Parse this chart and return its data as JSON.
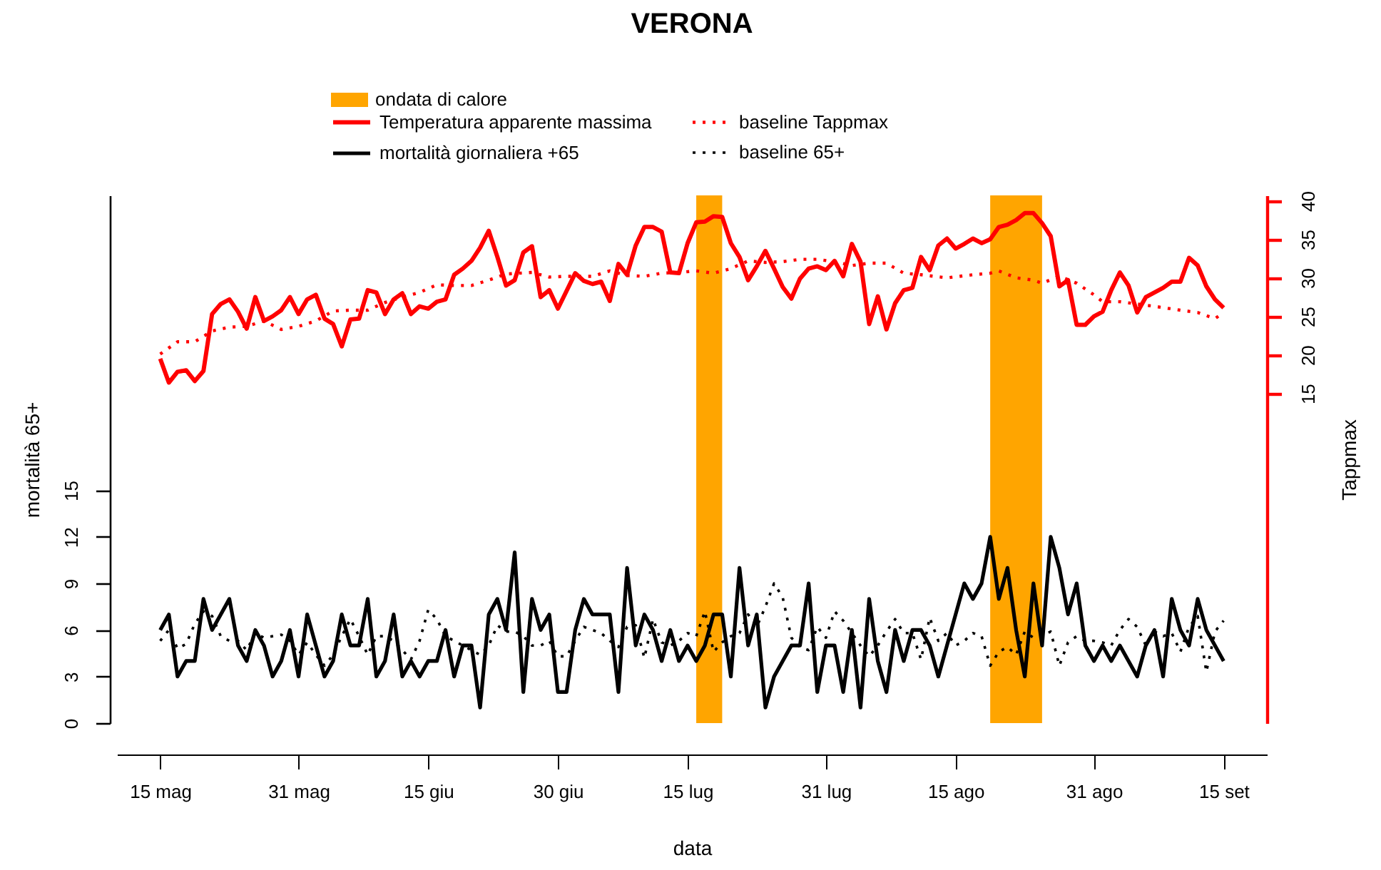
{
  "chart_data": {
    "type": "line",
    "title": "VERONA",
    "xlabel": "data",
    "ylabel": "mortalità 65+",
    "y2label": "Tappmax",
    "legend": "top",
    "line_style": "solid",
    "x": [
      "--05-15",
      "--05-16",
      "--05-17",
      "--05-18",
      "--05-19",
      "--05-20",
      "--05-21",
      "--05-22",
      "--05-23",
      "--05-24",
      "--05-25",
      "--05-26",
      "--05-27",
      "--05-28",
      "--05-29",
      "--05-30",
      "--05-31",
      "--06-01",
      "--06-02",
      "--06-03",
      "--06-04",
      "--06-05",
      "--06-06",
      "--06-07",
      "--06-08",
      "--06-09",
      "--06-10",
      "--06-11",
      "--06-12",
      "--06-13",
      "--06-14",
      "--06-15",
      "--06-16",
      "--06-17",
      "--06-18",
      "--06-19",
      "--06-20",
      "--06-21",
      "--06-22",
      "--06-23",
      "--06-24",
      "--06-25",
      "--06-26",
      "--06-27",
      "--06-28",
      "--06-29",
      "--06-30",
      "--07-01",
      "--07-02",
      "--07-03",
      "--07-04",
      "--07-05",
      "--07-06",
      "--07-07",
      "--07-08",
      "--07-09",
      "--07-10",
      "--07-11",
      "--07-12",
      "--07-13",
      "--07-14",
      "--07-15",
      "--07-16",
      "--07-17",
      "--07-18",
      "--07-19",
      "--07-20",
      "--07-21",
      "--07-22",
      "--07-23",
      "--07-24",
      "--07-25",
      "--07-26",
      "--07-27",
      "--07-28",
      "--07-29",
      "--07-30",
      "--07-31",
      "--08-01",
      "--08-02",
      "--08-03",
      "--08-04",
      "--08-05",
      "--08-06",
      "--08-07",
      "--08-08",
      "--08-09",
      "--08-10",
      "--08-11",
      "--08-12",
      "--08-13",
      "--08-14",
      "--08-15",
      "--08-16",
      "--08-17",
      "--08-18",
      "--08-19",
      "--08-20",
      "--08-21",
      "--08-22",
      "--08-23",
      "--08-24",
      "--08-25",
      "--08-26",
      "--08-27",
      "--08-28",
      "--08-29",
      "--08-30",
      "--08-31",
      "--09-01",
      "--09-02",
      "--09-03",
      "--09-04",
      "--09-05",
      "--09-06",
      "--09-07",
      "--09-08",
      "--09-09",
      "--09-10",
      "--09-11",
      "--09-12",
      "--09-13",
      "--09-14",
      "--09-15"
    ],
    "xlim": [
      "--05-10",
      "--09-20"
    ],
    "xticks": [
      {
        "value": "--05-15",
        "label": "15 mag"
      },
      {
        "value": "--05-31",
        "label": "31 mag"
      },
      {
        "value": "--06-15",
        "label": "15 giu"
      },
      {
        "value": "--06-30",
        "label": "30 giu"
      },
      {
        "value": "--07-15",
        "label": "15 lug"
      },
      {
        "value": "--07-31",
        "label": "31 lug"
      },
      {
        "value": "--08-15",
        "label": "15 ago"
      },
      {
        "value": "--08-31",
        "label": "31 ago"
      },
      {
        "value": "--09-15",
        "label": "15 set"
      }
    ],
    "ylim": [
      0,
      34.0
    ],
    "yticks": [
      0,
      3,
      6,
      9,
      12,
      15
    ],
    "y2lim": [
      -27.8,
      40.7
    ],
    "y2ticks": [
      15,
      20,
      25,
      30,
      35,
      40
    ],
    "bands": [
      {
        "axis": "x",
        "from": "--07-16",
        "to": "--07-19",
        "label": "ondata di calore",
        "color": "#ffa500"
      },
      {
        "axis": "x",
        "from": "--08-19",
        "to": "--08-25",
        "color": "#ffa500"
      }
    ],
    "series": [
      {
        "name": "Temperatura apparente massima",
        "color": "#ff0000",
        "axis": "y2",
        "values": [
          19.5,
          16.4,
          17.8,
          18.0,
          16.6,
          17.9,
          25.3,
          26.6,
          27.2,
          25.6,
          23.4,
          27.5,
          24.4,
          25.0,
          25.8,
          27.5,
          25.3,
          27.2,
          27.8,
          24.7,
          24.0,
          21.1,
          24.6,
          24.7,
          28.4,
          28.1,
          25.3,
          27.2,
          28.0,
          25.3,
          26.3,
          26.0,
          26.9,
          27.2,
          30.4,
          31.2,
          32.2,
          33.9,
          36.1,
          32.7,
          29.0,
          29.7,
          33.3,
          34.1,
          27.5,
          28.4,
          26.0,
          28.3,
          30.6,
          29.6,
          29.2,
          29.5,
          27.0,
          31.8,
          30.4,
          34.2,
          36.6,
          36.6,
          36.0,
          30.7,
          30.6,
          34.5,
          37.2,
          37.3,
          38.0,
          37.9,
          34.5,
          32.7,
          29.7,
          31.5,
          33.5,
          31.2,
          28.8,
          27.3,
          29.9,
          31.2,
          31.5,
          31.0,
          32.2,
          30.2,
          34.4,
          32.1,
          24.0,
          27.6,
          23.3,
          26.7,
          28.4,
          28.7,
          32.7,
          31.0,
          34.2,
          35.1,
          33.8,
          34.4,
          35.1,
          34.5,
          35.0,
          36.6,
          36.9,
          37.5,
          38.4,
          38.4,
          37.1,
          35.4,
          28.9,
          29.7,
          23.9,
          23.9,
          25.0,
          25.6,
          28.4,
          30.7,
          29.0,
          25.5,
          27.5,
          28.1,
          28.7,
          29.5,
          29.5,
          32.6,
          31.6,
          28.9,
          27.2,
          26.1
        ]
      },
      {
        "name": "mortalità giornaliera +65",
        "color": "#000000",
        "axis": "y",
        "values": [
          6,
          7,
          3,
          4,
          4,
          8,
          6,
          7,
          8,
          5,
          4,
          6,
          5,
          3,
          4,
          6,
          3,
          7,
          5,
          3,
          4,
          7,
          5,
          5,
          8,
          3,
          4,
          7,
          3,
          4,
          3,
          4,
          4,
          6,
          3,
          5,
          5,
          1,
          7,
          8,
          6,
          11,
          2,
          8,
          6,
          7,
          2,
          2,
          6,
          8,
          7,
          7,
          7,
          2,
          10,
          5,
          7,
          6,
          4,
          6,
          4,
          5,
          4,
          5,
          7,
          7,
          3,
          10,
          5,
          7,
          1,
          3,
          4,
          5,
          5,
          9,
          2,
          5,
          5,
          2,
          6,
          1,
          8,
          4,
          2,
          6,
          4,
          6,
          6,
          5,
          3,
          5,
          7,
          9,
          8,
          9,
          12,
          8,
          10,
          6,
          3,
          9,
          5,
          12,
          10,
          7,
          9,
          5,
          4,
          5,
          4,
          5,
          4,
          3,
          5,
          6,
          3,
          8,
          6,
          5,
          8,
          6,
          5,
          4
        ]
      },
      {
        "name": "baseline Tappmax",
        "color": "#ff0000",
        "axis": "y2",
        "line_style": "dotted",
        "x": [
          "--05-15",
          "--05-17",
          "--05-19",
          "--05-21",
          "--05-23",
          "--05-25",
          "--05-27",
          "--05-29",
          "--05-31",
          "--06-02",
          "--06-04",
          "--06-06",
          "--06-08",
          "--06-10",
          "--06-12",
          "--06-14",
          "--06-16",
          "--06-18",
          "--06-20",
          "--06-22",
          "--06-24",
          "--06-27",
          "--06-29",
          "--07-01",
          "--07-04",
          "--07-06",
          "--07-08",
          "--07-10",
          "--07-12",
          "--07-14",
          "--07-16",
          "--07-18",
          "--07-20",
          "--07-22",
          "--07-24",
          "--07-26",
          "--07-28",
          "--07-30",
          "--08-01",
          "--08-03",
          "--08-05",
          "--08-07",
          "--08-09",
          "--08-11",
          "--08-14",
          "--08-17",
          "--08-19",
          "--08-20",
          "--08-22",
          "--08-24",
          "--08-25",
          "--08-27",
          "--08-29",
          "--08-31",
          "--09-01",
          "--09-03",
          "--09-05",
          "--09-07",
          "--09-10",
          "--09-12",
          "--09-14",
          "--09-15"
        ],
        "values": [
          20.1,
          21.7,
          21.7,
          23.1,
          23.6,
          23.7,
          24.4,
          23.3,
          23.7,
          24.4,
          25.7,
          25.8,
          25.8,
          26.8,
          27.5,
          28.1,
          29.1,
          29.0,
          29.0,
          29.7,
          30.5,
          30.7,
          30.1,
          30.2,
          30.2,
          30.9,
          30.3,
          30.2,
          30.6,
          30.7,
          30.9,
          30.6,
          31.2,
          32.2,
          32.0,
          32.1,
          32.4,
          32.4,
          32.1,
          31.6,
          31.9,
          31.9,
          30.6,
          30.4,
          30.0,
          30.4,
          30.6,
          30.9,
          30.0,
          29.7,
          29.3,
          30.2,
          29.3,
          27.8,
          26.9,
          26.9,
          26.6,
          26.3,
          25.8,
          25.5,
          24.7,
          25.5
        ]
      },
      {
        "name": "baseline 65+",
        "color": "#000000",
        "axis": "y",
        "line_style": "dotted",
        "values": [
          5.3,
          6.0,
          4.8,
          5.1,
          6.4,
          7.2,
          6.9,
          5.6,
          5.3,
          5.3,
          4.7,
          5.8,
          5.5,
          5.6,
          5.7,
          5.3,
          4.4,
          5.2,
          4.4,
          3.7,
          4.4,
          5.6,
          6.7,
          5.6,
          4.4,
          5.6,
          5.6,
          5.3,
          4.7,
          4.1,
          5.3,
          7.3,
          6.7,
          5.6,
          5.3,
          5.0,
          4.7,
          4.4,
          5.0,
          6.3,
          5.9,
          5.9,
          5.6,
          5.0,
          5.0,
          5.3,
          4.3,
          4.3,
          5.3,
          6.2,
          6.0,
          5.8,
          5.3,
          4.9,
          6.2,
          6.3,
          4.2,
          6.7,
          5.2,
          5.0,
          5.3,
          5.8,
          5.6,
          7.2,
          4.6,
          5.2,
          5.6,
          5.8,
          7.0,
          6.2,
          7.5,
          9.0,
          8.1,
          5.5,
          4.9,
          4.7,
          6.2,
          5.5,
          7.2,
          6.6,
          5.8,
          5.0,
          4.3,
          5.0,
          5.9,
          6.7,
          5.8,
          5.8,
          4.1,
          6.8,
          5.3,
          5.8,
          5.0,
          5.3,
          5.8,
          5.6,
          3.7,
          4.6,
          4.9,
          4.4,
          5.9,
          5.5,
          5.6,
          5.9,
          3.7,
          5.2,
          5.6,
          5.3,
          5.3,
          5.2,
          5.0,
          6.0,
          6.7,
          6.2,
          5.0,
          5.9,
          5.6,
          5.8,
          4.6,
          6.2,
          6.9,
          3.3,
          5.9,
          6.6
        ]
      }
    ]
  }
}
